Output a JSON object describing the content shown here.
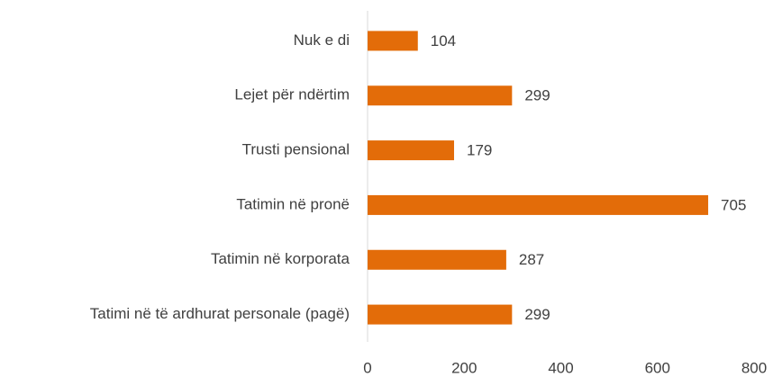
{
  "chart_data": {
    "type": "bar",
    "orientation": "horizontal",
    "categories": [
      "Nuk e di",
      "Lejet për ndërtim",
      "Trusti pensional",
      "Tatimin në pronë",
      "Tatimin në korporata",
      "Tatimi në të ardhurat personale (pagë)"
    ],
    "values": [
      104,
      299,
      179,
      705,
      287,
      299
    ],
    "color": "#e36c09",
    "xlim": [
      0,
      800
    ],
    "xticks": [
      0,
      200,
      400,
      600,
      800
    ],
    "grid": false
  }
}
